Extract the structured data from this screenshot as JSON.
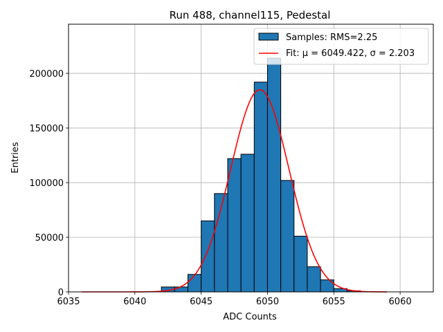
{
  "chart_data": {
    "type": "bar",
    "title": "Run 488, channel115, Pedestal",
    "xlabel": "ADC Counts",
    "ylabel": "Entries",
    "xlim": [
      6035,
      6062.5
    ],
    "ylim": [
      0,
      245000
    ],
    "xticks": [
      6035,
      6040,
      6045,
      6050,
      6055,
      6060
    ],
    "yticks": [
      0,
      50000,
      100000,
      150000,
      200000
    ],
    "grid": true,
    "legend_position": "top-right",
    "histogram": {
      "name": "Samples: RMS=2.25",
      "color": "#1f77b4",
      "bin_width": 1,
      "bin_starts": [
        6042,
        6043,
        6044,
        6045,
        6046,
        6047,
        6048,
        6049,
        6050,
        6051,
        6052,
        6053,
        6054,
        6055,
        6056
      ],
      "values": [
        4500,
        4500,
        16000,
        65000,
        90000,
        122000,
        126000,
        192000,
        214000,
        102000,
        51000,
        23000,
        11000,
        3000,
        1000
      ]
    },
    "fit": {
      "name": "Fit: μ = 6049.422, σ = 2.203",
      "color": "#ff0000",
      "mu": 6049.422,
      "sigma": 2.203,
      "amplitude": 185000,
      "x_range": [
        6036,
        6059
      ]
    }
  }
}
